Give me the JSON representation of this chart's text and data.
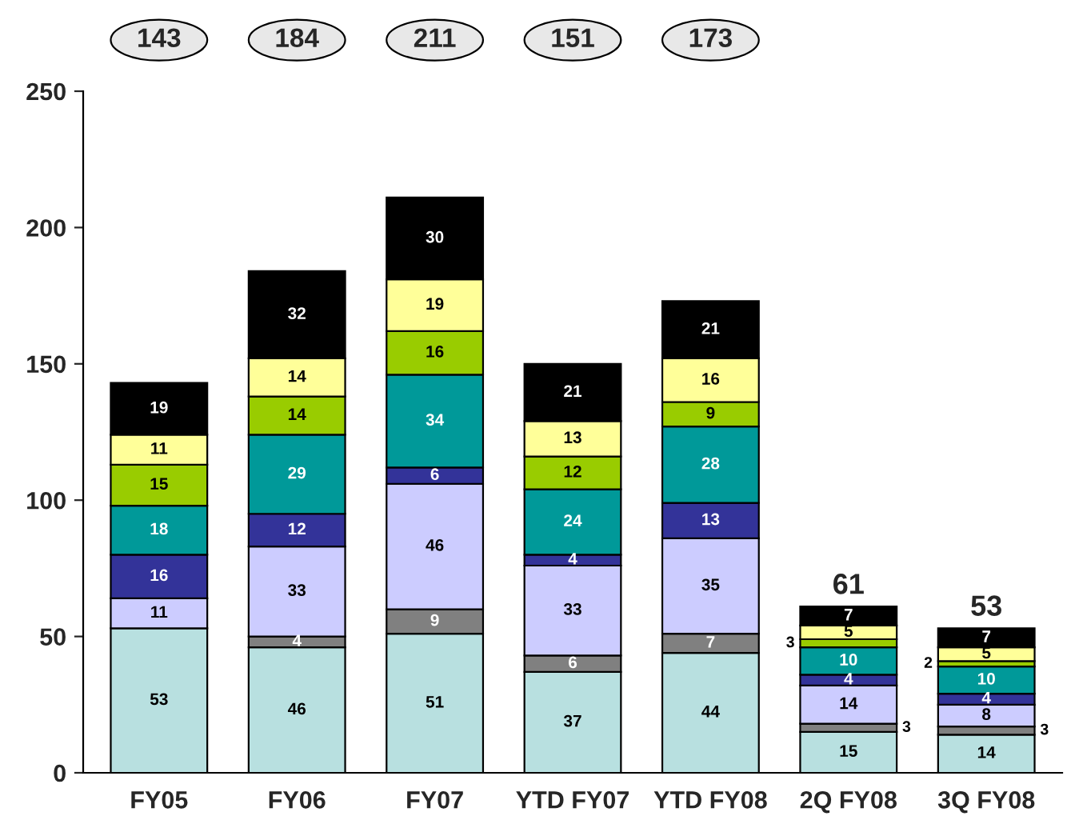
{
  "chart_data": {
    "type": "bar",
    "stacked": true,
    "categories": [
      "FY05",
      "FY06",
      "FY07",
      "YTD FY07",
      "YTD FY08",
      "2Q FY08",
      "3Q FY08"
    ],
    "series": [
      {
        "color": "#b8e0e0",
        "values": [
          53,
          46,
          51,
          37,
          44,
          15,
          14
        ]
      },
      {
        "color": "#808080",
        "values": [
          null,
          4,
          9,
          6,
          7,
          3,
          3
        ]
      },
      {
        "color": "#ccccff",
        "values": [
          11,
          33,
          46,
          33,
          35,
          14,
          8
        ]
      },
      {
        "color": "#333399",
        "values": [
          16,
          12,
          6,
          4,
          13,
          4,
          4
        ]
      },
      {
        "color": "#009999",
        "values": [
          18,
          29,
          34,
          24,
          28,
          10,
          10
        ]
      },
      {
        "color": "#99cc00",
        "values": [
          15,
          14,
          16,
          12,
          9,
          3,
          2
        ]
      },
      {
        "color": "#ffff99",
        "values": [
          11,
          14,
          19,
          13,
          16,
          5,
          5
        ]
      },
      {
        "color": "#000000",
        "values": [
          19,
          32,
          30,
          21,
          21,
          7,
          7
        ]
      }
    ],
    "data_labels": true,
    "totals": [
      null,
      null,
      null,
      null,
      null,
      "61",
      "53"
    ],
    "annotations": [
      "143",
      "184",
      "211",
      "151",
      "173"
    ],
    "ylim": [
      0,
      250
    ],
    "yticks": [
      0,
      50,
      100,
      150,
      200,
      250
    ],
    "grid": false,
    "legend": false
  }
}
